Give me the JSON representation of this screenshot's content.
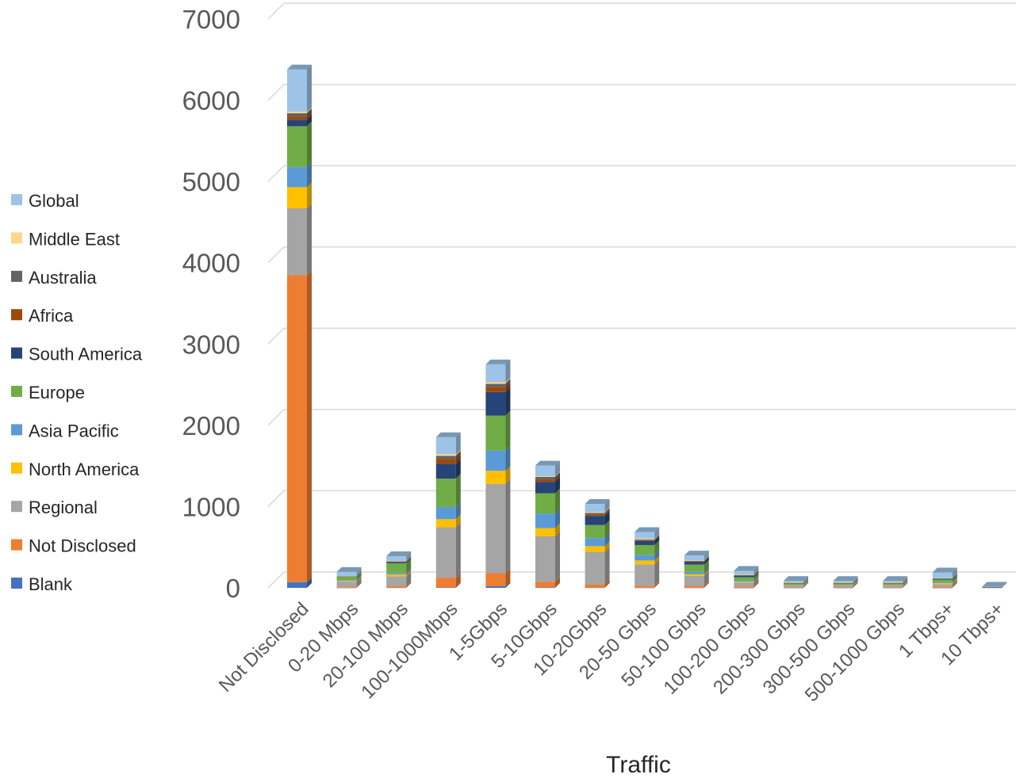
{
  "chart_data": {
    "type": "bar",
    "stacked": true,
    "three_d": true,
    "title": "",
    "xlabel": "Traffic",
    "ylabel": "",
    "ylim": [
      0,
      7000
    ],
    "yticks": [
      0,
      1000,
      2000,
      3000,
      4000,
      5000,
      6000,
      7000
    ],
    "grid": true,
    "legend_position": "left",
    "categories": [
      "Not Disclosed",
      "0-20 Mbps",
      "20-100 Mbps",
      "100-1000Mbps",
      "1-5Gbps",
      "5-10Gbps",
      "10-20Gbps",
      "20-50 Gbps",
      "50-100 Gbps",
      "100-200 Gbps",
      "200-300 Gbps",
      "300-500 Gbps",
      "500-1000 Gbps",
      "1 Tbps+",
      "10 Tbps+"
    ],
    "series": [
      {
        "name": "Blank",
        "color": "#4472C4",
        "values": [
          70,
          2,
          3,
          5,
          20,
          5,
          3,
          2,
          2,
          1,
          1,
          1,
          1,
          1,
          0
        ]
      },
      {
        "name": "Not Disclosed",
        "color": "#ED7D31",
        "values": [
          3780,
          15,
          20,
          120,
          160,
          70,
          40,
          25,
          25,
          15,
          8,
          8,
          8,
          15,
          2
        ]
      },
      {
        "name": "Regional",
        "color": "#A5A5A5",
        "values": [
          820,
          60,
          120,
          620,
          1100,
          560,
          400,
          260,
          120,
          50,
          20,
          20,
          20,
          30,
          3
        ]
      },
      {
        "name": "North America",
        "color": "#FFC000",
        "values": [
          260,
          8,
          20,
          100,
          160,
          100,
          70,
          50,
          20,
          10,
          5,
          5,
          5,
          10,
          1
        ]
      },
      {
        "name": "Asia Pacific",
        "color": "#5B9BD5",
        "values": [
          250,
          10,
          20,
          150,
          250,
          180,
          100,
          70,
          30,
          15,
          5,
          5,
          5,
          10,
          1
        ]
      },
      {
        "name": "Europe",
        "color": "#70AD47",
        "values": [
          500,
          40,
          120,
          350,
          430,
          250,
          160,
          120,
          90,
          40,
          15,
          15,
          15,
          35,
          2
        ]
      },
      {
        "name": "South America",
        "color": "#264478",
        "values": [
          80,
          5,
          15,
          180,
          290,
          140,
          110,
          50,
          30,
          15,
          5,
          5,
          5,
          10,
          1
        ]
      },
      {
        "name": "Africa",
        "color": "#9E480E",
        "values": [
          40,
          2,
          5,
          60,
          60,
          30,
          20,
          10,
          8,
          5,
          2,
          2,
          2,
          3,
          0
        ]
      },
      {
        "name": "Australia",
        "color": "#636363",
        "values": [
          40,
          2,
          5,
          40,
          40,
          30,
          20,
          10,
          8,
          5,
          2,
          2,
          2,
          3,
          0
        ]
      },
      {
        "name": "Middle East",
        "color": "#FFD68A",
        "values": [
          20,
          2,
          2,
          20,
          20,
          10,
          10,
          10,
          5,
          4,
          2,
          2,
          2,
          3,
          0
        ]
      },
      {
        "name": "Global",
        "color": "#9DC3E6",
        "values": [
          520,
          50,
          60,
          210,
          220,
          130,
          100,
          80,
          60,
          50,
          20,
          20,
          20,
          70,
          5
        ]
      }
    ]
  }
}
